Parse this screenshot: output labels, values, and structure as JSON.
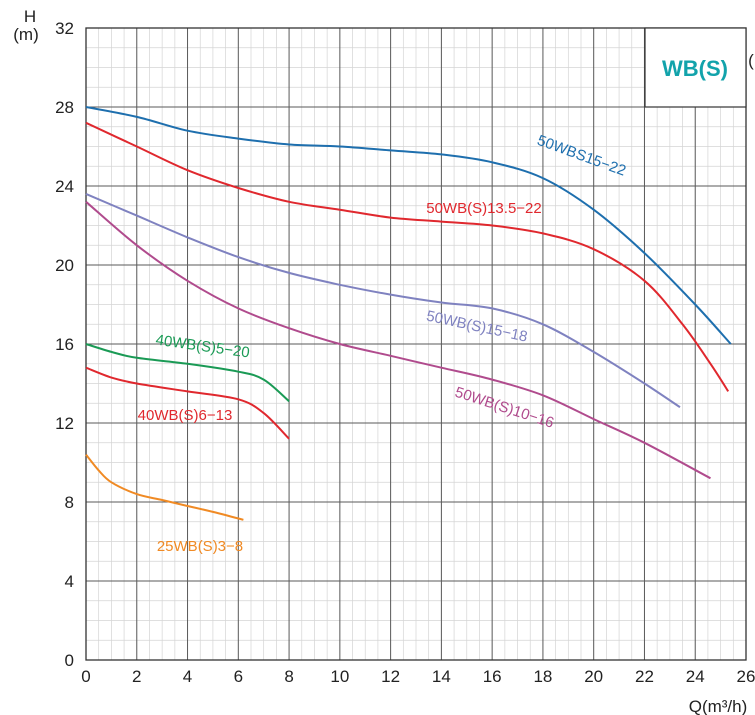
{
  "chart_data": {
    "type": "line",
    "xlabel": "Q(m³/h)",
    "ylabel_top": "H",
    "ylabel_unit": "(m)",
    "xlim": [
      0,
      26
    ],
    "ylim": [
      0,
      32
    ],
    "x_ticks": [
      0,
      2,
      4,
      6,
      8,
      10,
      12,
      14,
      16,
      18,
      20,
      22,
      24,
      26
    ],
    "y_ticks": [
      0,
      4,
      8,
      12,
      16,
      20,
      24,
      28,
      32
    ],
    "grid": true,
    "model_box": {
      "text": "WB(S)",
      "side_mark": "(",
      "color": "#12a3ab"
    },
    "series": [
      {
        "name": "50WBS15−22",
        "color": "#1e6fae",
        "points": [
          [
            0,
            28.0
          ],
          [
            2,
            27.5
          ],
          [
            4,
            26.8
          ],
          [
            6,
            26.4
          ],
          [
            8,
            26.1
          ],
          [
            10,
            26.0
          ],
          [
            12,
            25.8
          ],
          [
            14,
            25.6
          ],
          [
            16,
            25.2
          ],
          [
            18,
            24.4
          ],
          [
            20,
            22.8
          ],
          [
            22,
            20.6
          ],
          [
            24,
            18.0
          ],
          [
            25.4,
            16.0
          ]
        ]
      },
      {
        "name": "50WB(S)13.5−22",
        "color": "#e0282e",
        "points": [
          [
            0,
            27.2
          ],
          [
            2,
            26.0
          ],
          [
            4,
            24.8
          ],
          [
            6,
            23.9
          ],
          [
            8,
            23.2
          ],
          [
            10,
            22.8
          ],
          [
            12,
            22.4
          ],
          [
            14,
            22.2
          ],
          [
            16,
            22.0
          ],
          [
            18,
            21.6
          ],
          [
            20,
            20.8
          ],
          [
            22,
            19.2
          ],
          [
            23.5,
            17.0
          ],
          [
            24.6,
            15.0
          ],
          [
            25.3,
            13.6
          ]
        ]
      },
      {
        "name": "50WB(S)15−18",
        "color": "#7f82c0",
        "points": [
          [
            0,
            23.6
          ],
          [
            2,
            22.5
          ],
          [
            4,
            21.4
          ],
          [
            6,
            20.4
          ],
          [
            8,
            19.6
          ],
          [
            10,
            19.0
          ],
          [
            12,
            18.5
          ],
          [
            14,
            18.1
          ],
          [
            16,
            17.8
          ],
          [
            18,
            17.0
          ],
          [
            20,
            15.6
          ],
          [
            22,
            14.0
          ],
          [
            23.4,
            12.8
          ]
        ]
      },
      {
        "name": "50WB(S)10−16",
        "color": "#b04b8d",
        "points": [
          [
            0,
            23.2
          ],
          [
            2,
            21.0
          ],
          [
            4,
            19.2
          ],
          [
            6,
            17.8
          ],
          [
            8,
            16.8
          ],
          [
            10,
            16.0
          ],
          [
            12,
            15.4
          ],
          [
            14,
            14.8
          ],
          [
            16,
            14.2
          ],
          [
            18,
            13.4
          ],
          [
            20,
            12.2
          ],
          [
            22,
            11.0
          ],
          [
            24.6,
            9.2
          ]
        ]
      },
      {
        "name": "40WB(S)5−20",
        "color": "#1a9a55",
        "points": [
          [
            0,
            16.0
          ],
          [
            1,
            15.6
          ],
          [
            2,
            15.3
          ],
          [
            4,
            15.0
          ],
          [
            6,
            14.6
          ],
          [
            7,
            14.2
          ],
          [
            8,
            13.1
          ]
        ]
      },
      {
        "name": "40WB(S)6−13",
        "color": "#e0282e",
        "points": [
          [
            0,
            14.8
          ],
          [
            1,
            14.3
          ],
          [
            2,
            14.0
          ],
          [
            4,
            13.6
          ],
          [
            6,
            13.2
          ],
          [
            7,
            12.5
          ],
          [
            8,
            11.2
          ]
        ]
      },
      {
        "name": "25WB(S)3−8",
        "color": "#f08a24",
        "points": [
          [
            0,
            10.4
          ],
          [
            0.5,
            9.6
          ],
          [
            1,
            9.0
          ],
          [
            2,
            8.4
          ],
          [
            3,
            8.1
          ],
          [
            4,
            7.8
          ],
          [
            5,
            7.5
          ],
          [
            6.2,
            7.1
          ]
        ]
      }
    ]
  }
}
